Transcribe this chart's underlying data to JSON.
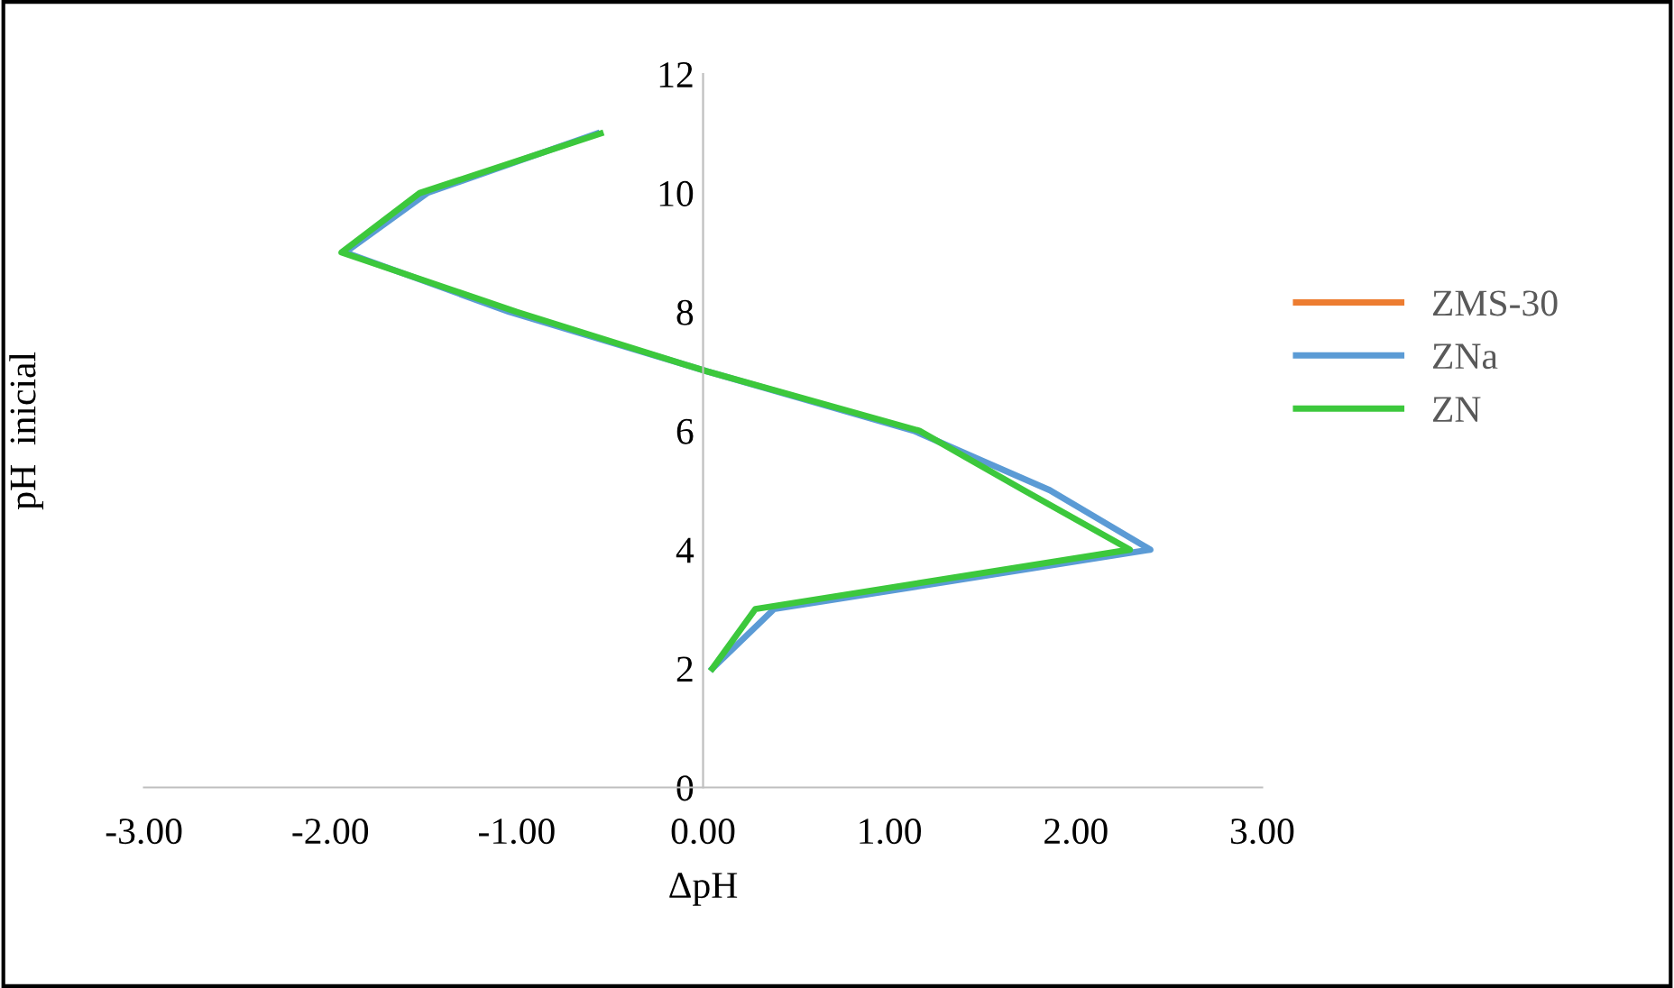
{
  "chart_data": {
    "type": "line",
    "xlabel": "ΔpH",
    "ylabel": "pH  inicial",
    "xlim": [
      -3,
      3
    ],
    "xticks": [
      {
        "value": -3,
        "label": "-3.00"
      },
      {
        "value": -2,
        "label": "-2.00"
      },
      {
        "value": -1,
        "label": "-1.00"
      },
      {
        "value": 0,
        "label": "0.00"
      },
      {
        "value": 1,
        "label": "1.00"
      },
      {
        "value": 2,
        "label": "2.00"
      },
      {
        "value": 3,
        "label": "3.00"
      }
    ],
    "ylim": [
      0,
      12
    ],
    "yticks": [
      0,
      2,
      4,
      6,
      8,
      10,
      12
    ],
    "grid": false,
    "legend": "right",
    "marker": "none",
    "line_style": "solid",
    "series": [
      {
        "name": "ZMS-30",
        "color": "#ed7d31",
        "x": [
          null,
          null,
          null,
          null,
          null,
          null,
          null,
          null,
          null,
          null
        ],
        "values": [
          null,
          null,
          null,
          null,
          null,
          null,
          null,
          null,
          null,
          null
        ]
      },
      {
        "name": "ZNa",
        "color": "#5b9bd5",
        "x": [
          0.05,
          0.38,
          2.4,
          1.86,
          1.13,
          0.02,
          -1.04,
          -1.92,
          -1.48,
          -0.57
        ],
        "values": [
          2,
          3,
          4,
          5,
          6,
          7,
          8,
          9,
          10,
          11
        ]
      },
      {
        "name": "ZN",
        "color": "#3cc83c",
        "x": [
          0.05,
          0.28,
          2.29,
          1.72,
          1.16,
          0.02,
          -1.0,
          -1.94,
          -1.52,
          -0.55
        ],
        "values": [
          2,
          3,
          4,
          5,
          6,
          7,
          8,
          9,
          10,
          11
        ]
      }
    ]
  }
}
